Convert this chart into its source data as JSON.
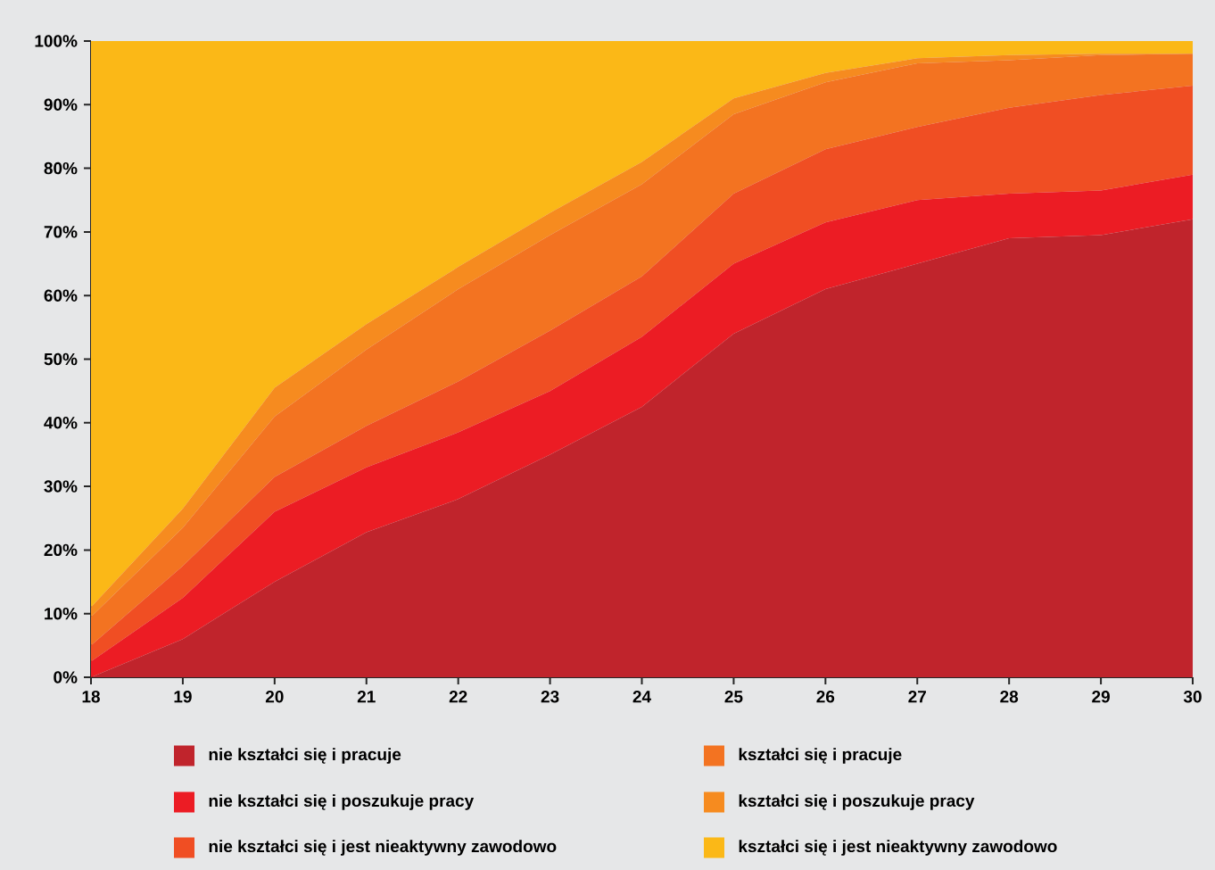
{
  "chart_data": {
    "type": "area",
    "stacked": true,
    "x": [
      18,
      19,
      20,
      21,
      22,
      23,
      24,
      25,
      26,
      27,
      28,
      29,
      30
    ],
    "series": [
      {
        "name": "nie kształci się i pracuje",
        "color": "#c0242c",
        "values": [
          0,
          6,
          15,
          22.8,
          28,
          35,
          42.5,
          54,
          61,
          65,
          69,
          69.5,
          72
        ]
      },
      {
        "name": "nie kształci się i poszukuje pracy",
        "color": "#ec1c24",
        "values": [
          2.5,
          6.5,
          11,
          10.2,
          10.5,
          10,
          11,
          11,
          10.5,
          10,
          7,
          7,
          7
        ]
      },
      {
        "name": "nie kształci się i jest nieaktywny zawodowo",
        "color": "#f04e23",
        "values": [
          2.5,
          5,
          5.5,
          6.5,
          8,
          9.5,
          9.5,
          11,
          11.5,
          11.5,
          13.5,
          15,
          14
        ]
      },
      {
        "name": "kształci się i pracuje",
        "color": "#f37321",
        "values": [
          4.5,
          6,
          9.5,
          12,
          14.5,
          15,
          14.5,
          12.5,
          10.5,
          10,
          7.5,
          6.3,
          5
        ]
      },
      {
        "name": "kształci się i poszukuje pracy",
        "color": "#f68b1f",
        "values": [
          1.5,
          3,
          4.5,
          4,
          3.5,
          3.5,
          3.5,
          2.5,
          1.5,
          0.8,
          0.8,
          0.2,
          0
        ]
      },
      {
        "name": "kształci się i jest nieaktywny zawodowo",
        "color": "#fbb817",
        "values": [
          89,
          73.5,
          54.5,
          44.5,
          35.5,
          27,
          19,
          9,
          5,
          2.7,
          2.2,
          2,
          2
        ]
      }
    ],
    "xlim": [
      18,
      30
    ],
    "xticks": [
      18,
      19,
      20,
      21,
      22,
      23,
      24,
      25,
      26,
      27,
      28,
      29,
      30
    ],
    "ylim": [
      0,
      100
    ],
    "yticks": [
      {
        "value": 0,
        "label": "0%"
      },
      {
        "value": 10,
        "label": "10%"
      },
      {
        "value": 20,
        "label": "20%"
      },
      {
        "value": 30,
        "label": "30%"
      },
      {
        "value": 40,
        "label": "40%"
      },
      {
        "value": 50,
        "label": "50%"
      },
      {
        "value": 60,
        "label": "60%"
      },
      {
        "value": 70,
        "label": "70%"
      },
      {
        "value": 80,
        "label": "80%"
      },
      {
        "value": 90,
        "label": "90%"
      },
      {
        "value": 100,
        "label": "100%"
      }
    ],
    "legend": "bottom"
  }
}
